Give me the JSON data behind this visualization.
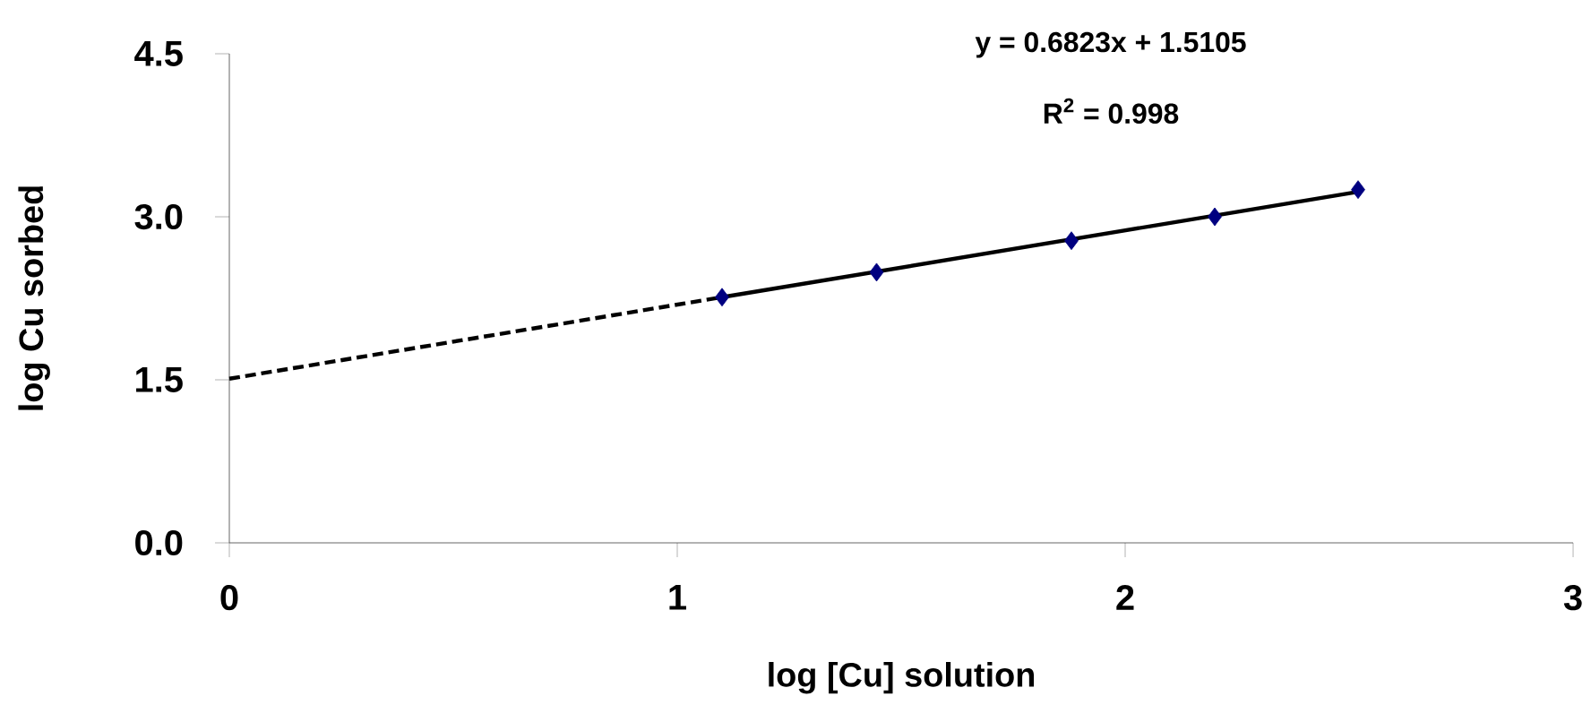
{
  "chart_data": {
    "type": "scatter",
    "xlabel": "log [Cu] solution",
    "ylabel": "log Cu sorbed",
    "xlim": [
      0,
      3
    ],
    "xticks": [
      0,
      1,
      2,
      3
    ],
    "ylim": [
      0,
      4.5
    ],
    "yticks": [
      {
        "value": 0,
        "label": "0.0"
      },
      1.5,
      {
        "value": 3,
        "label": "3.0"
      },
      4.5
    ],
    "annotations": [
      "y = 0.6823x + 1.5105",
      "R$^{2}$ = 0.998"
    ],
    "series": [
      {
        "type": "scatter",
        "color": "#000080",
        "marker": "diamond",
        "x": [
          1.1,
          1.445,
          1.88,
          2.2,
          2.52
        ],
        "values": [
          2.26,
          2.49,
          2.78,
          3.0,
          3.25
        ]
      },
      {
        "type": "line",
        "color": "#000000",
        "line_style": "solid",
        "marker": "none",
        "x": [
          1.1,
          2.52
        ],
        "values": [
          2.26,
          3.23
        ]
      },
      {
        "type": "line",
        "color": "#000000",
        "line_style": "dashed",
        "marker": "none",
        "x": [
          0,
          1.1
        ],
        "values": [
          1.51,
          2.26
        ]
      }
    ]
  }
}
